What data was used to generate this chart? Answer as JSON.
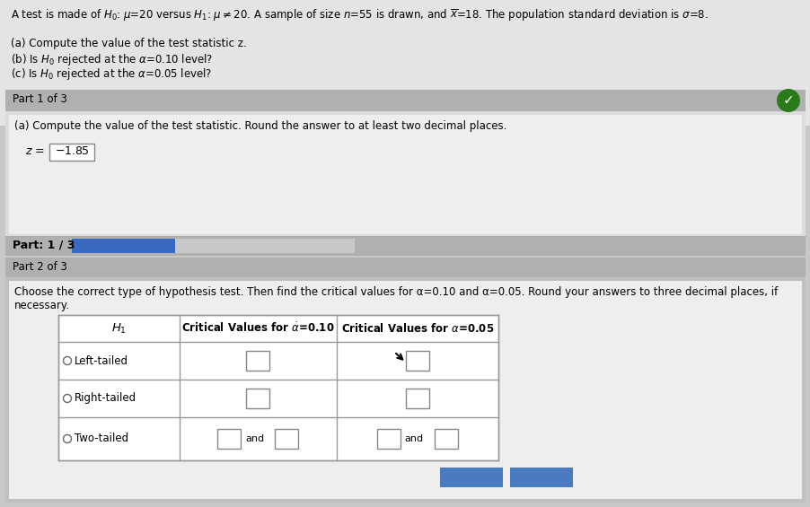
{
  "bg_color": "#c8c8c8",
  "top_section_bg": "#e8e8e8",
  "panel_header_bg": "#b0b0b0",
  "panel_content_bg": "#d8d8d8",
  "panel_inner_bg": "#f0f0f0",
  "progress_row_bg": "#a8a8a8",
  "progress_bar_color": "#3a6abf",
  "checkmark_bg": "#2a7a1a",
  "table_bg": "#ffffff",
  "table_border": "#999999",
  "btn_color": "#4a7abf",
  "text_color": "#111111",
  "title": "A test is made of $H_0$: $\\mu$=20 versus $H_1$: $\\mu\\neq$20. A sample of size $n$=55 is drawn, and $\\overline{x}$=18. The population standard deviation is $\\sigma$=8.",
  "bullet_a": "(a) Compute the value of the test statistic z.",
  "bullet_b": "(b) Is $H_0$ rejected at the $\\alpha$=0.10 level?",
  "bullet_c": "(c) Is $H_0$ rejected at the $\\alpha$=0.05 level?",
  "part1_header": "Part 1 of 3",
  "part1_instr": "(a) Compute the value of the test statistic. Round the answer to at least two decimal places.",
  "z_label": "z =",
  "z_value": "-1.85",
  "progress_label": "Part: 1 / 3",
  "part2_header": "Part 2 of 3",
  "part2_instr_line1": "Choose the correct type of hypothesis test. Then find the critical values for α=0.10 and α=0.05. Round your answers to three decimal places, if",
  "part2_instr_line2": "necessary.",
  "col1_header": "$H_1$",
  "col2_header": "Critical Values for α̇=0.10",
  "col3_header": "Critical Values for α=0.05",
  "row1": "Left-tailed",
  "row2": "Right-tailed",
  "row3": "Two-tailed",
  "and_text": "and"
}
